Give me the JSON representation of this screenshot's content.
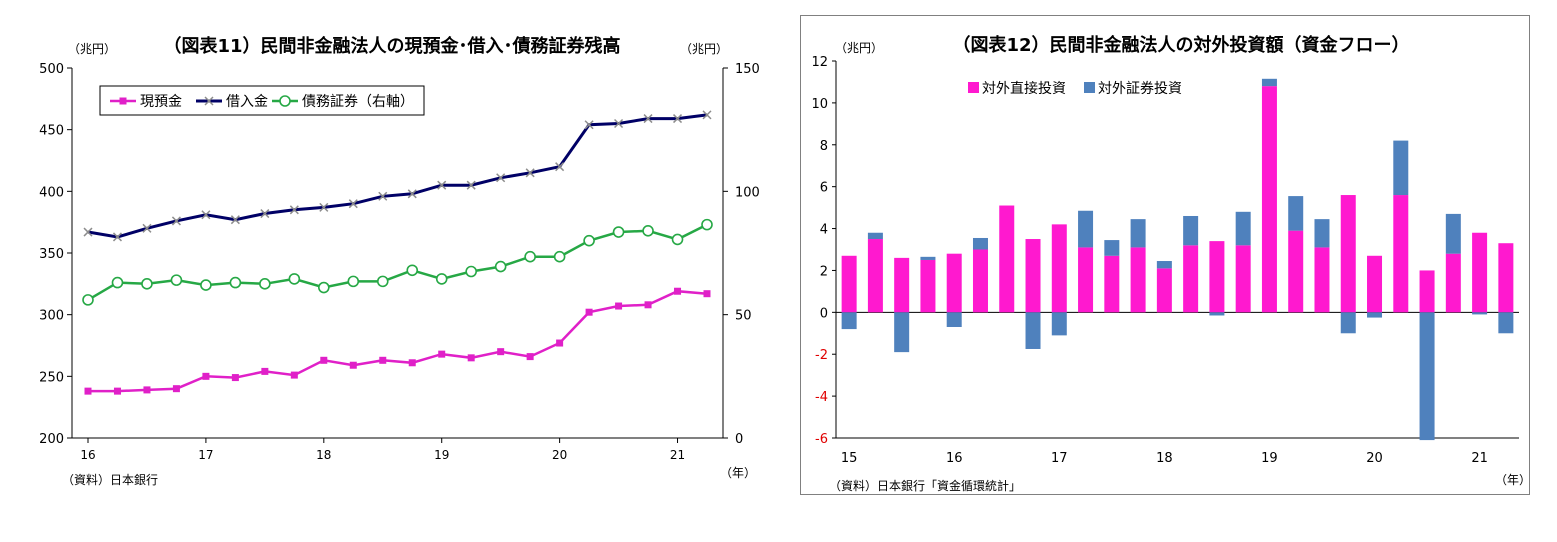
{
  "chart_data": [
    {
      "type": "line",
      "title": "（図表11）民間非金融法人の現預金･借入･債務証券残高",
      "ylabel_left": "（兆円）",
      "ylabel_right": "（兆円）",
      "xlabel": "（年）",
      "source": "（資料）日本銀行",
      "ylim_left": [
        200,
        500
      ],
      "yticks_left": [
        "500",
        "450",
        "400",
        "350",
        "300",
        "250",
        "200"
      ],
      "ylim_right": [
        0,
        150
      ],
      "yticks_right": [
        "150",
        "100",
        "50",
        "0"
      ],
      "x_tick_labels": [
        "16",
        "17",
        "18",
        "19",
        "20",
        "21"
      ],
      "grid": false,
      "legend_position": "top-left",
      "series": [
        {
          "name": "現預金",
          "axis": "left",
          "color": "#e020c8",
          "values": [
            238,
            238,
            239,
            240,
            250,
            249,
            254,
            251,
            263,
            259,
            263,
            261,
            268,
            265,
            270,
            266,
            277,
            302,
            307,
            308,
            319,
            317
          ]
        },
        {
          "name": "借入金",
          "axis": "left",
          "color": "#000066",
          "values": [
            367,
            363,
            370,
            376,
            381,
            377,
            382,
            385,
            387,
            390,
            396,
            398,
            405,
            405,
            411,
            415,
            420,
            454,
            455,
            459,
            459,
            462
          ]
        },
        {
          "name": "債務証券（右軸）",
          "axis": "right",
          "color": "#26a845",
          "values": [
            56,
            63,
            62.5,
            64,
            62,
            63,
            62.5,
            64.5,
            61,
            63.5,
            63.5,
            68,
            64.5,
            67.5,
            69.5,
            73.5,
            73.5,
            80,
            83.5,
            84,
            80.5,
            86.5
          ]
        }
      ]
    },
    {
      "type": "bar",
      "title": "（図表12）民間非金融法人の対外投資額（資金フロー）",
      "ylabel": "（兆円）",
      "xlabel": "（年）",
      "source": "（資料）日本銀行「資金循環統計」",
      "ylim": [
        -6,
        12
      ],
      "yticks": [
        "12",
        "10",
        "8",
        "6",
        "4",
        "2",
        "0",
        "-2",
        "-4",
        "-6"
      ],
      "x_tick_labels": [
        "15",
        "16",
        "17",
        "18",
        "19",
        "20",
        "21"
      ],
      "grid": false,
      "legend_position": "top-left",
      "stacked": true,
      "series": [
        {
          "name": "対外直接投資",
          "color": "#ff19cf",
          "values": [
            2.7,
            3.5,
            2.6,
            2.5,
            2.8,
            3.0,
            5.1,
            3.5,
            4.2,
            3.1,
            2.7,
            3.1,
            2.1,
            3.2,
            3.4,
            3.2,
            10.8,
            3.9,
            3.1,
            5.6,
            2.7,
            5.6,
            2.0,
            2.8,
            3.8,
            3.3
          ]
        },
        {
          "name": "対外証券投資",
          "color": "#4f81bd",
          "values": [
            -0.8,
            0.3,
            -1.9,
            0.15,
            -0.7,
            0.55,
            0,
            -1.75,
            -1.1,
            1.75,
            0.75,
            1.35,
            0.35,
            1.4,
            -0.15,
            1.6,
            0.35,
            1.65,
            1.35,
            -1.0,
            -0.25,
            2.6,
            -6.1,
            1.9,
            -0.1,
            -1.0
          ]
        }
      ]
    }
  ]
}
